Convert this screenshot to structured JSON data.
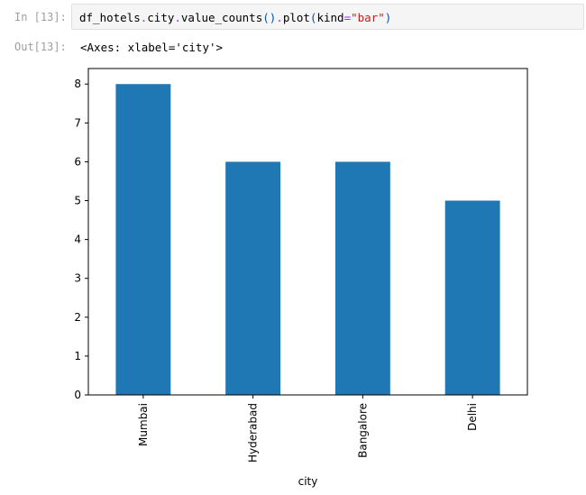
{
  "cell": {
    "in_prompt": "In [13]:",
    "out_prompt": "Out[13]:",
    "code": {
      "var": "df_hotels",
      "dot1": ".",
      "attr1": "city",
      "dot2": ".",
      "method1": "value_counts",
      "paren1": "()",
      "dot3": ".",
      "method2": "plot",
      "paren_open": "(",
      "kwarg": "kind",
      "eq": "=",
      "str": "\"bar\"",
      "paren_close": ")"
    },
    "output_repr": "<Axes: xlabel='city'>"
  },
  "chart_data": {
    "type": "bar",
    "categories": [
      "Mumbai",
      "Hyderabad",
      "Bangalore",
      "Delhi"
    ],
    "values": [
      8,
      6,
      6,
      5
    ],
    "xlabel": "city",
    "ylabel": "",
    "ylim": [
      0,
      8.4
    ],
    "yticks": [
      "0",
      "1",
      "2",
      "3",
      "4",
      "5",
      "6",
      "7",
      "8"
    ],
    "bar_color": "#1f77b4",
    "grid": false
  }
}
